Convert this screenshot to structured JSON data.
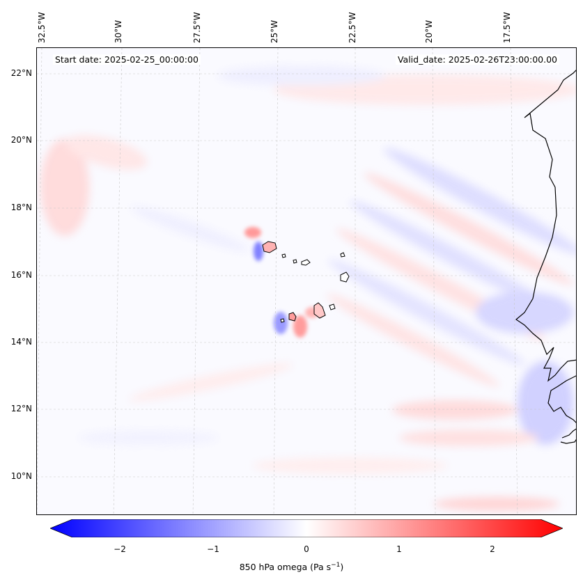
{
  "header": {
    "start_date": "Start date: 2025-02-25_00:00:00",
    "valid_date": "Valid_date: 2025-02-26T23:00:00.00"
  },
  "longitude_labels": [
    "32.5°W",
    "30°W",
    "27.5°W",
    "25°W",
    "22.5°W",
    "20°W",
    "17.5°W"
  ],
  "latitude_labels": [
    "22°N",
    "20°N",
    "18°N",
    "16°N",
    "14°N",
    "12°N",
    "10°N"
  ],
  "colorbar": {
    "ticks": [
      "−2",
      "−1",
      "0",
      "1",
      "2"
    ],
    "label_prefix": "850 hPa omega (Pa s",
    "label_sup": "−1",
    "label_suffix": ")",
    "cmap": "bwr",
    "min_color": "#0000ff",
    "mid_color": "#ffffff",
    "max_color": "#ff0000",
    "range": [
      -2.6,
      2.6
    ]
  },
  "map": {
    "coastline_color": "#000000",
    "gridline_color": "#bbbbbb",
    "region": "Cape Verde / West African coast"
  }
}
